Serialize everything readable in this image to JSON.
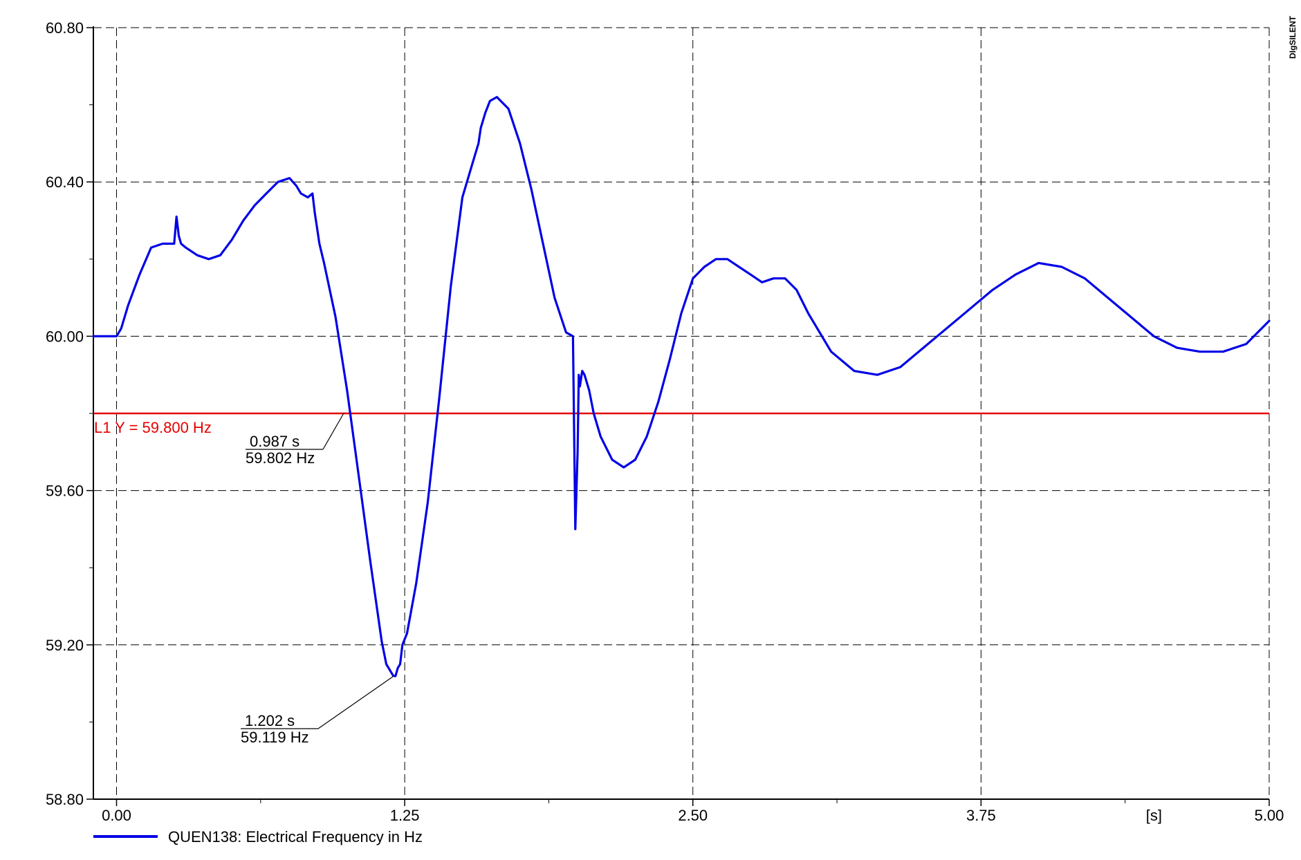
{
  "chart_data": {
    "type": "line",
    "title": "",
    "xlabel": "",
    "ylabel": "",
    "x_unit_label": "[s]",
    "xlim": [
      -0.1,
      5.0
    ],
    "ylim": [
      58.8,
      60.8
    ],
    "x_ticks": [
      {
        "value": 0.0,
        "label": "0.00"
      },
      {
        "value": 1.25,
        "label": "1.25"
      },
      {
        "value": 2.5,
        "label": "2.50"
      },
      {
        "value": 3.75,
        "label": "3.75"
      },
      {
        "value": 5.0,
        "label": "5.00"
      }
    ],
    "y_ticks": [
      {
        "value": 60.8,
        "label": "60.80"
      },
      {
        "value": 60.4,
        "label": "60.40"
      },
      {
        "value": 60.0,
        "label": "60.00"
      },
      {
        "value": 59.6,
        "label": "59.60"
      },
      {
        "value": 59.2,
        "label": "59.20"
      },
      {
        "value": 58.8,
        "label": "58.80"
      }
    ],
    "grid": true,
    "legend_position": "bottom-left",
    "series": [
      {
        "name": "QUEN138: Electrical Frequency in Hz",
        "color": "#0000e6",
        "x": [
          -0.1,
          0.0,
          0.02,
          0.05,
          0.1,
          0.15,
          0.2,
          0.25,
          0.26,
          0.27,
          0.28,
          0.3,
          0.35,
          0.4,
          0.45,
          0.5,
          0.55,
          0.6,
          0.65,
          0.7,
          0.75,
          0.78,
          0.8,
          0.83,
          0.85,
          0.86,
          0.87,
          0.88,
          0.9,
          0.95,
          1.0,
          1.05,
          1.1,
          1.15,
          1.17,
          1.2,
          1.21,
          1.22,
          1.23,
          1.24,
          1.26,
          1.3,
          1.35,
          1.4,
          1.45,
          1.5,
          1.55,
          1.57,
          1.58,
          1.6,
          1.62,
          1.65,
          1.7,
          1.75,
          1.8,
          1.85,
          1.9,
          1.95,
          1.98,
          1.99,
          2.0,
          2.005,
          2.01,
          2.02,
          2.03,
          2.05,
          2.07,
          2.1,
          2.15,
          2.2,
          2.25,
          2.3,
          2.35,
          2.4,
          2.45,
          2.5,
          2.55,
          2.6,
          2.65,
          2.7,
          2.75,
          2.8,
          2.85,
          2.9,
          2.95,
          3.0,
          3.1,
          3.2,
          3.3,
          3.4,
          3.5,
          3.6,
          3.7,
          3.8,
          3.9,
          4.0,
          4.1,
          4.2,
          4.3,
          4.4,
          4.5,
          4.6,
          4.7,
          4.8,
          4.9,
          5.0
        ],
        "y": [
          60.0,
          60.0,
          60.02,
          60.08,
          60.16,
          60.23,
          60.24,
          60.24,
          60.31,
          60.26,
          60.24,
          60.23,
          60.21,
          60.2,
          60.21,
          60.25,
          60.3,
          60.34,
          60.37,
          60.4,
          60.41,
          60.39,
          60.37,
          60.36,
          60.37,
          60.32,
          60.28,
          60.24,
          60.19,
          60.05,
          59.86,
          59.64,
          59.42,
          59.21,
          59.15,
          59.12,
          59.119,
          59.14,
          59.15,
          59.2,
          59.23,
          59.36,
          59.57,
          59.84,
          60.13,
          60.36,
          60.46,
          60.5,
          60.54,
          60.58,
          60.61,
          60.62,
          60.59,
          60.5,
          60.38,
          60.24,
          60.1,
          60.01,
          60.0,
          59.5,
          59.7,
          59.9,
          59.87,
          59.91,
          59.9,
          59.86,
          59.8,
          59.74,
          59.68,
          59.66,
          59.68,
          59.74,
          59.83,
          59.94,
          60.06,
          60.15,
          60.18,
          60.2,
          60.2,
          60.18,
          60.16,
          60.14,
          60.15,
          60.15,
          60.12,
          60.06,
          59.96,
          59.91,
          59.9,
          59.92,
          59.97,
          60.02,
          60.07,
          60.12,
          60.16,
          60.19,
          60.18,
          60.15,
          60.1,
          60.05,
          60.0,
          59.97,
          59.96,
          59.96,
          59.98,
          60.04
        ]
      }
    ],
    "reference_line": {
      "y": 59.8,
      "label": "L1 Y = 59.800 Hz",
      "color": "#e60000"
    },
    "annotations": [
      {
        "time_label": "0.987 s",
        "value_label": "59.802 Hz",
        "x": 0.987,
        "y": 59.802
      },
      {
        "time_label": "1.202 s",
        "value_label": "59.119 Hz",
        "x": 1.202,
        "y": 59.119
      }
    ],
    "watermark": "DIgSILENT"
  }
}
